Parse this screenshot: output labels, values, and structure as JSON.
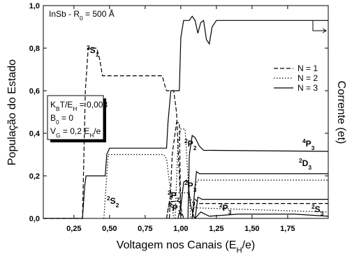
{
  "chart_data": {
    "type": "line",
    "header": [
      [
        "InSb - R",
        ""
      ],
      [
        "0",
        "sub"
      ],
      [
        " = 500 Å",
        ""
      ]
    ],
    "x_label": [
      [
        "Voltagem nos Canais (E",
        ""
      ],
      [
        "H",
        "sub"
      ],
      [
        "/e)",
        ""
      ]
    ],
    "y_label": "População do Estado",
    "y2_label": "Corrente (et)",
    "parameters": [
      [
        [
          "K",
          ""
        ],
        [
          "B",
          "sub"
        ],
        [
          "T/E",
          ""
        ],
        [
          "H",
          "sub"
        ],
        [
          " = 0,003",
          ""
        ]
      ],
      [
        [
          "B",
          ""
        ],
        [
          "0",
          "sub"
        ],
        [
          " = 0",
          ""
        ]
      ],
      [
        [
          "V",
          ""
        ],
        [
          "G",
          "sub"
        ],
        [
          " = 0,2 E",
          ""
        ],
        [
          "H",
          "sub"
        ],
        [
          "/e",
          ""
        ]
      ]
    ],
    "annotations": [
      [
        [
          "2",
          "sup"
        ],
        [
          "S",
          ""
        ],
        [
          "1",
          "sub"
        ]
      ],
      [
        [
          "2",
          "sup"
        ],
        [
          "S",
          ""
        ],
        [
          "2",
          "sub"
        ]
      ],
      [
        [
          "2",
          "sup"
        ],
        [
          "P",
          ""
        ],
        [
          "2",
          "sub"
        ]
      ],
      [
        [
          "2",
          "sup"
        ],
        [
          "P",
          ""
        ],
        [
          "1",
          "sub"
        ]
      ],
      [
        [
          "2",
          "sup"
        ],
        [
          "P",
          ""
        ],
        [
          "2",
          "sub"
        ]
      ],
      [
        [
          "2",
          "sup"
        ],
        [
          "P",
          ""
        ],
        [
          "3",
          "sub"
        ]
      ],
      [
        [
          "2",
          "sup"
        ],
        [
          "P",
          ""
        ],
        [
          "3",
          "sub"
        ]
      ],
      [
        [
          "4",
          "sup"
        ],
        [
          "P",
          ""
        ],
        [
          "3",
          "sub"
        ]
      ],
      [
        [
          "2",
          "sup"
        ],
        [
          "D",
          ""
        ],
        [
          "3",
          "sub"
        ]
      ],
      [
        [
          "2",
          "sup"
        ],
        [
          "S",
          ""
        ],
        [
          "3",
          "sub"
        ]
      ]
    ],
    "xlim": [
      0.035,
      2.035
    ],
    "ylim": [
      0,
      1
    ],
    "xticks": [
      {
        "value": 0.25,
        "label": "0,25"
      },
      {
        "value": 0.5,
        "label": "0,50"
      },
      {
        "value": 0.75,
        "label": "0,75"
      },
      {
        "value": 1.0,
        "label": "1,00"
      },
      {
        "value": 1.25,
        "label": "1,25"
      },
      {
        "value": 1.5,
        "label": "1,50"
      },
      {
        "value": 1.75,
        "label": "1,75"
      }
    ],
    "yticks": [
      {
        "value": 0,
        "label": "0,0"
      },
      {
        "value": 0.2,
        "label": "0,2"
      },
      {
        "value": 0.4,
        "label": "0,4"
      },
      {
        "value": 0.6,
        "label": "0,6"
      },
      {
        "value": 0.8,
        "label": "0,8"
      },
      {
        "value": 1.0,
        "label": "1,0"
      }
    ],
    "series": [
      {
        "name": "N = 1",
        "color": "#000000",
        "dash": "6,3",
        "curves": [
          {
            "x": [
              0.035,
              0.31,
              0.33,
              0.35,
              0.41,
              0.43,
              0.45,
              0.87,
              0.89,
              0.9,
              0.95,
              0.97,
              0.99,
              1.0,
              1.02
            ],
            "values": [
              0,
              0,
              0.6,
              0.8,
              0.8,
              0.75,
              0.67,
              0.67,
              0.62,
              0.6,
              0.6,
              0.5,
              0.2,
              0.05,
              0
            ]
          },
          {
            "x": [
              0.92,
              0.94,
              0.97,
              0.99,
              1.0
            ],
            "values": [
              0,
              0.3,
              0.45,
              0.45,
              0
            ]
          },
          {
            "x": [
              0.9,
              0.92,
              0.99,
              1.0,
              1.01
            ],
            "values": [
              0,
              0.08,
              0.08,
              0.03,
              0
            ]
          },
          {
            "x": [
              1.08,
              1.1,
              1.13,
              2.035
            ],
            "values": [
              0,
              0.09,
              0.07,
              0.07
            ]
          }
        ]
      },
      {
        "name": "N = 2",
        "color": "#000000",
        "dash": "1.5,2.5",
        "curves": [
          {
            "x": [
              0.46,
              0.48,
              0.49,
              0.88,
              0.9,
              0.95
            ],
            "values": [
              0,
              0.2,
              0.3,
              0.3,
              0.28,
              0
            ]
          },
          {
            "x": [
              0.96,
              0.98,
              1.0,
              1.03,
              1.05,
              1.07
            ],
            "values": [
              0,
              0.35,
              0.42,
              0.42,
              0.2,
              0
            ]
          },
          {
            "x": [
              1.08,
              1.1,
              1.12,
              2.035
            ],
            "values": [
              0,
              0.15,
              0.18,
              0.18
            ]
          },
          {
            "x": [
              0.9,
              0.93,
              1.05,
              1.1,
              2.035
            ],
            "values": [
              0,
              0.12,
              0.12,
              0.05,
              0.03
            ]
          }
        ]
      },
      {
        "name": "N = 3",
        "color": "#000000",
        "dash": "none",
        "curves": [
          {
            "x": [
              0.035,
              0.31,
              0.325,
              0.335,
              0.47,
              0.48,
              0.5,
              0.9,
              0.91,
              0.93,
              0.99,
              1.0,
              1.02,
              1.06,
              1.08,
              1.1,
              1.12,
              1.14,
              1.16,
              1.18,
              1.2,
              1.22,
              1.25,
              2.035
            ],
            "values": [
              0,
              0,
              0.15,
              0.2,
              0.2,
              0.3,
              0.33,
              0.33,
              0.45,
              0.6,
              0.6,
              0.85,
              0.93,
              0.93,
              0.95,
              0.93,
              0.87,
              0.92,
              0.93,
              0.84,
              0.82,
              0.9,
              0.93,
              0.93
            ]
          },
          {
            "x": [
              1.05,
              1.06,
              1.08,
              1.1,
              1.13,
              1.16,
              2.035
            ],
            "values": [
              0,
              0.3,
              0.39,
              0.38,
              0.34,
              0.32,
              0.315
            ]
          },
          {
            "x": [
              1.08,
              1.1,
              1.11,
              1.13,
              2.035
            ],
            "values": [
              0,
              0.15,
              0.22,
              0.21,
              0.21
            ]
          },
          {
            "x": [
              0.98,
              1.0,
              1.02,
              1.04,
              1.05,
              1.07,
              1.09,
              1.1
            ],
            "values": [
              0,
              0.05,
              0.17,
              0.18,
              0.17,
              0.06,
              0.01,
              0
            ]
          },
          {
            "x": [
              1.1,
              1.12,
              1.15,
              2.035
            ],
            "values": [
              0,
              0.1,
              0.09,
              0.09
            ]
          },
          {
            "x": [
              1.1,
              1.14,
              1.2,
              1.4,
              1.8,
              2.035
            ],
            "values": [
              0,
              0.03,
              0.01,
              0.02,
              0.02,
              0.01
            ]
          }
        ]
      }
    ]
  }
}
